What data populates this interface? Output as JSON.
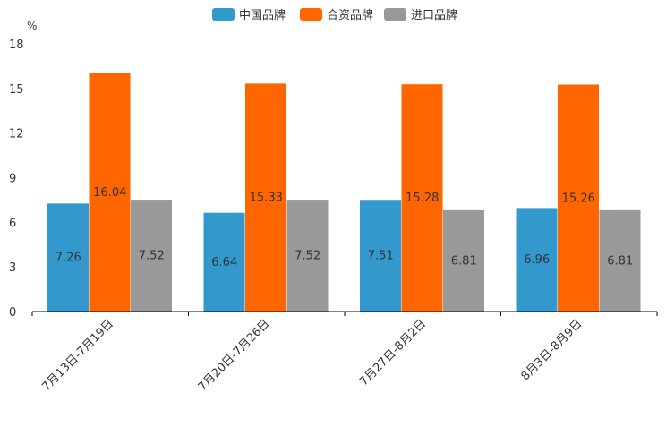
{
  "chart_data": {
    "type": "bar",
    "title": "",
    "unit": "%",
    "xlabel": "",
    "ylabel": "%",
    "ylim": [
      0,
      18
    ],
    "yticks": [
      0,
      3,
      6,
      9,
      12,
      15,
      18
    ],
    "grid": false,
    "legend_position": "top-center",
    "categories": [
      "7月13日-7月19日",
      "7月20日-7月26日",
      "7月27日-8月2日",
      "8月3日-8月9日"
    ],
    "series": [
      {
        "name": "中国品牌",
        "color": "#3399cc",
        "values": [
          7.26,
          6.64,
          7.51,
          6.96
        ]
      },
      {
        "name": "合资品牌",
        "color": "#ff6600",
        "values": [
          16.04,
          15.33,
          15.28,
          15.26
        ]
      },
      {
        "name": "进口品牌",
        "color": "#999999",
        "values": [
          7.52,
          7.52,
          6.81,
          6.81
        ]
      }
    ]
  }
}
